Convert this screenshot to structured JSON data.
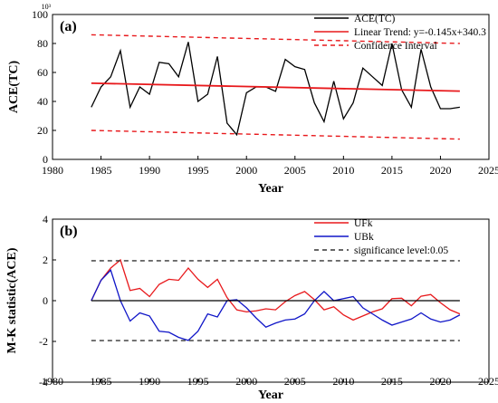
{
  "chart_data": [
    {
      "type": "line",
      "panel_label": "(a)",
      "xlabel": "Year",
      "ylabel": "ACE(TC)",
      "y_multiplier": "10³",
      "xlim": [
        1980,
        2025
      ],
      "ylim": [
        0,
        100
      ],
      "xticks": [
        1980,
        1985,
        1990,
        1995,
        2000,
        2005,
        2010,
        2015,
        2020,
        2025
      ],
      "yticks": [
        0,
        20,
        40,
        60,
        80,
        100
      ],
      "legend_position": "top-right",
      "x": [
        1984,
        1985,
        1986,
        1987,
        1988,
        1989,
        1990,
        1991,
        1992,
        1993,
        1994,
        1995,
        1996,
        1997,
        1998,
        1999,
        2000,
        2001,
        2002,
        2003,
        2004,
        2005,
        2006,
        2007,
        2008,
        2009,
        2010,
        2011,
        2012,
        2013,
        2014,
        2015,
        2016,
        2017,
        2018,
        2019,
        2020,
        2021,
        2022
      ],
      "series": [
        {
          "name": "ACE(TC)",
          "color": "#000000",
          "style": "solid",
          "values": [
            36,
            50,
            57,
            75,
            36,
            50,
            45,
            67,
            66,
            57,
            81,
            40,
            45,
            71,
            25,
            17,
            46,
            50,
            50,
            47,
            69,
            64,
            62,
            39,
            26,
            54,
            28,
            39,
            63,
            57,
            51,
            80,
            48,
            36,
            76,
            50,
            35,
            35,
            36
          ]
        },
        {
          "name": "Linear Trend: y=-0.145x+340.3",
          "color": "#e8191c",
          "style": "solid",
          "x": [
            1984,
            2022
          ],
          "values": [
            52.6,
            47.1
          ]
        },
        {
          "name": "Confidence Interval",
          "color": "#e8191c",
          "style": "dashed",
          "x": [
            1984,
            2022
          ],
          "values": [
            86,
            80
          ]
        },
        {
          "name": "",
          "color": "#e8191c",
          "style": "dashed",
          "x": [
            1984,
            2022
          ],
          "values": [
            20,
            14
          ]
        }
      ]
    },
    {
      "type": "line",
      "panel_label": "(b)",
      "xlabel": "Year",
      "ylabel": "M-K statistic(ACE)",
      "xlim": [
        1980,
        2025
      ],
      "ylim": [
        -4,
        4
      ],
      "xticks": [
        1980,
        1985,
        1990,
        1995,
        2000,
        2005,
        2010,
        2015,
        2020,
        2025
      ],
      "yticks": [
        -4,
        -2,
        0,
        2,
        4
      ],
      "legend_position": "top-right",
      "x": [
        1984,
        1985,
        1986,
        1987,
        1988,
        1989,
        1990,
        1991,
        1992,
        1993,
        1994,
        1995,
        1996,
        1997,
        1998,
        1999,
        2000,
        2001,
        2002,
        2003,
        2004,
        2005,
        2006,
        2007,
        2008,
        2009,
        2010,
        2011,
        2012,
        2013,
        2014,
        2015,
        2016,
        2017,
        2018,
        2019,
        2020,
        2021,
        2022
      ],
      "series": [
        {
          "name": "UFk",
          "color": "#e8191c",
          "style": "solid",
          "values": [
            0,
            1,
            1.6,
            2.0,
            0.5,
            0.6,
            0.2,
            0.8,
            1.05,
            1.0,
            1.6,
            1.05,
            0.65,
            1.05,
            0.15,
            -0.45,
            -0.55,
            -0.5,
            -0.4,
            -0.45,
            -0.05,
            0.25,
            0.45,
            0.05,
            -0.45,
            -0.3,
            -0.7,
            -0.95,
            -0.75,
            -0.55,
            -0.4,
            0.1,
            0.12,
            -0.25,
            0.22,
            0.3,
            -0.1,
            -0.45,
            -0.65
          ]
        },
        {
          "name": "UBk",
          "color": "#1016c8",
          "style": "solid",
          "values": [
            0,
            1.0,
            1.5,
            0,
            -1.0,
            -0.6,
            -0.75,
            -1.5,
            -1.55,
            -1.8,
            -1.95,
            -1.5,
            -0.65,
            -0.8,
            0,
            0.05,
            -0.35,
            -0.85,
            -1.3,
            -1.1,
            -0.95,
            -0.9,
            -0.65,
            0,
            0.45,
            0,
            0.1,
            0.2,
            -0.35,
            -0.65,
            -0.95,
            -1.2,
            -1.05,
            -0.9,
            -0.6,
            -0.9,
            -1.05,
            -0.95,
            -0.7
          ]
        },
        {
          "name": "significance level:0.05",
          "color": "#333333",
          "style": "dashed",
          "x": [
            1984,
            2022
          ],
          "values": [
            1.96,
            1.96
          ]
        },
        {
          "name": "",
          "color": "#333333",
          "style": "dashed",
          "x": [
            1984,
            2022
          ],
          "values": [
            -1.96,
            -1.96
          ]
        },
        {
          "name": "",
          "color": "#000000",
          "style": "solid",
          "x": [
            1984,
            2022
          ],
          "values": [
            0,
            0
          ]
        }
      ]
    }
  ]
}
